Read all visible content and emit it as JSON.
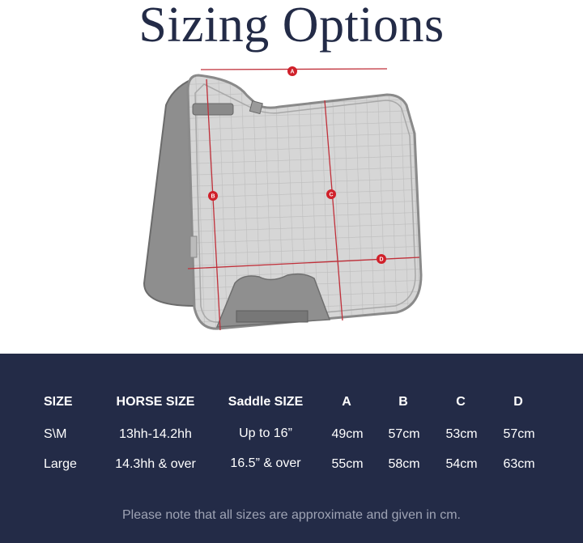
{
  "title": "Sizing Options",
  "diagram": {
    "labels": [
      "A",
      "B",
      "C",
      "D"
    ],
    "marker_color": "#d0202a"
  },
  "table": {
    "headers": [
      "SIZE",
      "HORSE SIZE",
      "Saddle SIZE",
      "A",
      "B",
      "C",
      "D"
    ],
    "rows": [
      [
        "S\\M",
        "13hh-14.2hh",
        "Up to 16”",
        "49cm",
        "57cm",
        "53cm",
        "57cm"
      ],
      [
        "Large",
        "14.3hh & over",
        "16.5” & over",
        "55cm",
        "58cm",
        "54cm",
        "63cm"
      ]
    ]
  },
  "note": "Please note that all sizes are approximate and given in cm.",
  "colors": {
    "panel_bg": "#232b47",
    "title": "#232b47",
    "note": "#9ea3b4"
  }
}
